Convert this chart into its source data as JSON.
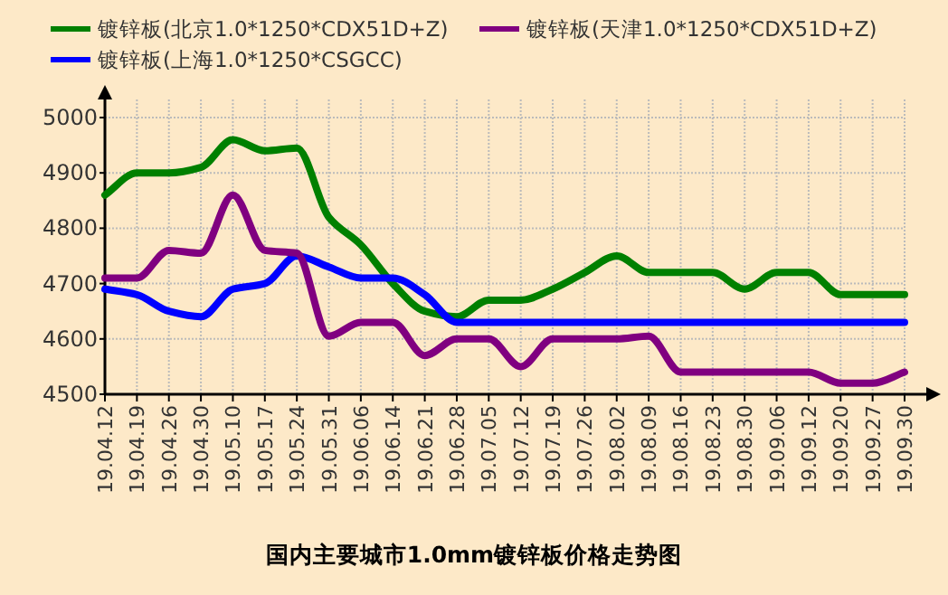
{
  "chart_data": {
    "type": "line",
    "title": "国内主要城市1.0mm镀锌板价格走势图",
    "categories": [
      "19.04.12",
      "19.04.19",
      "19.04.26",
      "19.04.30",
      "19.05.10",
      "19.05.17",
      "19.05.24",
      "19.05.31",
      "19.06.06",
      "19.06.14",
      "19.06.21",
      "19.06.28",
      "19.07.05",
      "19.07.12",
      "19.07.19",
      "19.07.26",
      "19.08.02",
      "19.08.09",
      "19.08.16",
      "19.08.23",
      "19.08.30",
      "19.09.06",
      "19.09.12",
      "19.09.20",
      "19.09.27",
      "19.09.30"
    ],
    "series": [
      {
        "name": "镀锌板(北京1.0*1250*CDX51D+Z)",
        "color": "#008000",
        "values": [
          4860,
          4900,
          4900,
          4910,
          4960,
          4940,
          4945,
          4820,
          4770,
          4700,
          4650,
          4640,
          4670,
          4670,
          4690,
          4720,
          4750,
          4720,
          4720,
          4720,
          4690,
          4720,
          4720,
          4680,
          4680,
          4680
        ]
      },
      {
        "name": "镀锌板(上海1.0*1250*CSGCC)",
        "color": "#0000ff",
        "values": [
          4690,
          4680,
          4650,
          4640,
          4690,
          4700,
          4750,
          4730,
          4710,
          4710,
          4680,
          4630,
          4630,
          4630,
          4630,
          4630,
          4630,
          4630,
          4630,
          4630,
          4630,
          4630,
          4630,
          4630,
          4630,
          4630
        ]
      },
      {
        "name": "镀锌板(天津1.0*1250*CDX51D+Z)",
        "color": "#800080",
        "values": [
          4710,
          4710,
          4760,
          4755,
          4860,
          4760,
          4755,
          4605,
          4630,
          4630,
          4570,
          4600,
          4600,
          4550,
          4600,
          4600,
          4600,
          4605,
          4540,
          4540,
          4540,
          4540,
          4540,
          4520,
          4520,
          4540
        ]
      }
    ],
    "ylim": [
      4500,
      5000
    ],
    "yticks": [
      4500,
      4600,
      4700,
      4800,
      4900,
      5000
    ],
    "grid": true,
    "legend": "top",
    "line_style": "solid",
    "marker": "none"
  }
}
